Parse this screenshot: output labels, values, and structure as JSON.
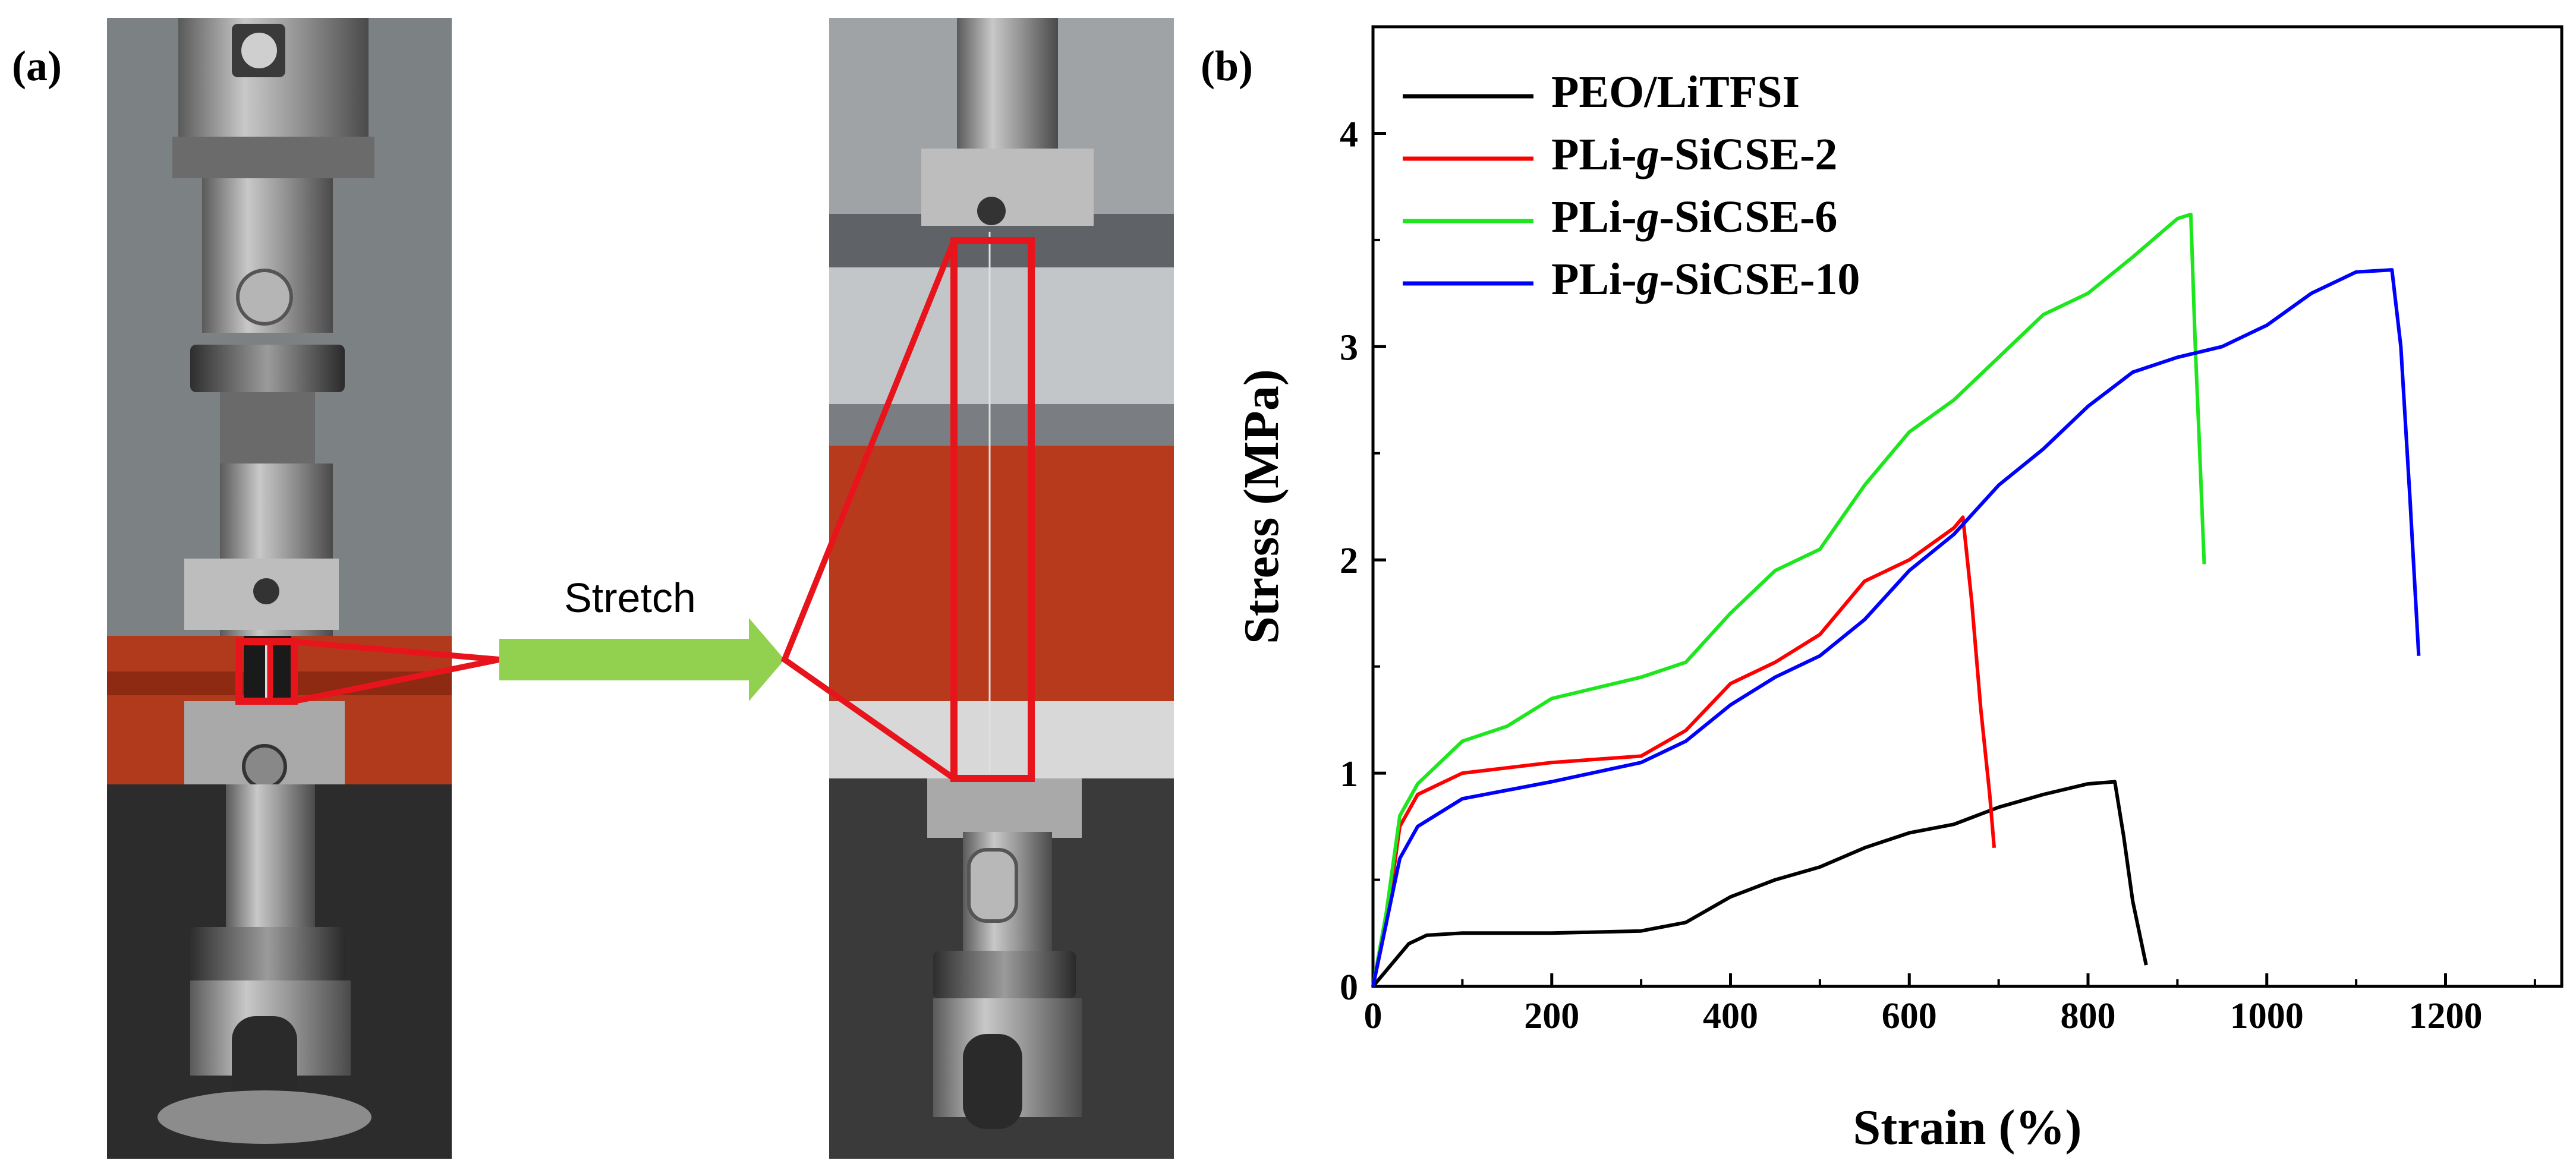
{
  "panel_a": {
    "label": "(a)",
    "arrow_label": "Stretch",
    "photo_left": "photo-tensile-tester-before",
    "photo_right": "photo-tensile-tester-stretched"
  },
  "panel_b": {
    "label": "(b)"
  },
  "colors": {
    "highlight": "#e8141c",
    "arrow": "#92d050",
    "black": "#000000",
    "red": "#ff0000",
    "green": "#1ee61e",
    "blue": "#0000ff"
  },
  "chart_data": {
    "type": "line",
    "title": "",
    "xlabel": "Strain (%)",
    "ylabel": "Stress (MPa)",
    "xlim": [
      0,
      1330
    ],
    "ylim": [
      0,
      4.5
    ],
    "xticks": [
      0,
      200,
      400,
      600,
      800,
      1000,
      1200
    ],
    "yticks": [
      0,
      1,
      2,
      3,
      4
    ],
    "legend_position": "top-left",
    "series": [
      {
        "name": "PEO/LiTFSI",
        "name_parts": [
          "PEO/LiTFSI",
          "",
          ""
        ],
        "color": "#000000",
        "points": [
          [
            0,
            0
          ],
          [
            20,
            0.1
          ],
          [
            40,
            0.2
          ],
          [
            60,
            0.24
          ],
          [
            100,
            0.25
          ],
          [
            200,
            0.25
          ],
          [
            300,
            0.26
          ],
          [
            350,
            0.3
          ],
          [
            400,
            0.42
          ],
          [
            450,
            0.5
          ],
          [
            500,
            0.56
          ],
          [
            550,
            0.65
          ],
          [
            600,
            0.72
          ],
          [
            650,
            0.76
          ],
          [
            700,
            0.84
          ],
          [
            750,
            0.9
          ],
          [
            800,
            0.95
          ],
          [
            830,
            0.96
          ],
          [
            840,
            0.7
          ],
          [
            850,
            0.4
          ],
          [
            865,
            0.1
          ]
        ]
      },
      {
        "name": "PLi-g-SiCSE-2",
        "name_parts": [
          "PLi-",
          "g",
          "-SiCSE-2"
        ],
        "color": "#ff0000",
        "points": [
          [
            0,
            0
          ],
          [
            15,
            0.3
          ],
          [
            30,
            0.75
          ],
          [
            50,
            0.9
          ],
          [
            100,
            1.0
          ],
          [
            200,
            1.05
          ],
          [
            300,
            1.08
          ],
          [
            350,
            1.2
          ],
          [
            400,
            1.42
          ],
          [
            450,
            1.52
          ],
          [
            500,
            1.65
          ],
          [
            550,
            1.9
          ],
          [
            600,
            2.0
          ],
          [
            650,
            2.15
          ],
          [
            660,
            2.2
          ],
          [
            670,
            1.8
          ],
          [
            680,
            1.3
          ],
          [
            690,
            0.9
          ],
          [
            695,
            0.65
          ]
        ]
      },
      {
        "name": "PLi-g-SiCSE-6",
        "name_parts": [
          "PLi-",
          "g",
          "-SiCSE-6"
        ],
        "color": "#1ee61e",
        "points": [
          [
            0,
            0
          ],
          [
            15,
            0.35
          ],
          [
            30,
            0.8
          ],
          [
            50,
            0.95
          ],
          [
            100,
            1.15
          ],
          [
            150,
            1.22
          ],
          [
            200,
            1.35
          ],
          [
            300,
            1.45
          ],
          [
            350,
            1.52
          ],
          [
            400,
            1.75
          ],
          [
            450,
            1.95
          ],
          [
            500,
            2.05
          ],
          [
            550,
            2.35
          ],
          [
            600,
            2.6
          ],
          [
            650,
            2.75
          ],
          [
            700,
            2.95
          ],
          [
            750,
            3.15
          ],
          [
            800,
            3.25
          ],
          [
            850,
            3.42
          ],
          [
            900,
            3.6
          ],
          [
            915,
            3.62
          ],
          [
            920,
            3.0
          ],
          [
            925,
            2.5
          ],
          [
            930,
            1.98
          ]
        ]
      },
      {
        "name": "PLi-g-SiCSE-10",
        "name_parts": [
          "PLi-",
          "g",
          "-SiCSE-10"
        ],
        "color": "#0000ff",
        "points": [
          [
            0,
            0
          ],
          [
            15,
            0.3
          ],
          [
            30,
            0.6
          ],
          [
            50,
            0.75
          ],
          [
            100,
            0.88
          ],
          [
            200,
            0.96
          ],
          [
            300,
            1.05
          ],
          [
            350,
            1.15
          ],
          [
            400,
            1.32
          ],
          [
            450,
            1.45
          ],
          [
            500,
            1.55
          ],
          [
            550,
            1.72
          ],
          [
            600,
            1.95
          ],
          [
            650,
            2.12
          ],
          [
            700,
            2.35
          ],
          [
            750,
            2.52
          ],
          [
            800,
            2.72
          ],
          [
            850,
            2.88
          ],
          [
            900,
            2.95
          ],
          [
            950,
            3.0
          ],
          [
            1000,
            3.1
          ],
          [
            1050,
            3.25
          ],
          [
            1100,
            3.35
          ],
          [
            1140,
            3.36
          ],
          [
            1150,
            3.0
          ],
          [
            1160,
            2.3
          ],
          [
            1170,
            1.55
          ]
        ]
      }
    ]
  }
}
